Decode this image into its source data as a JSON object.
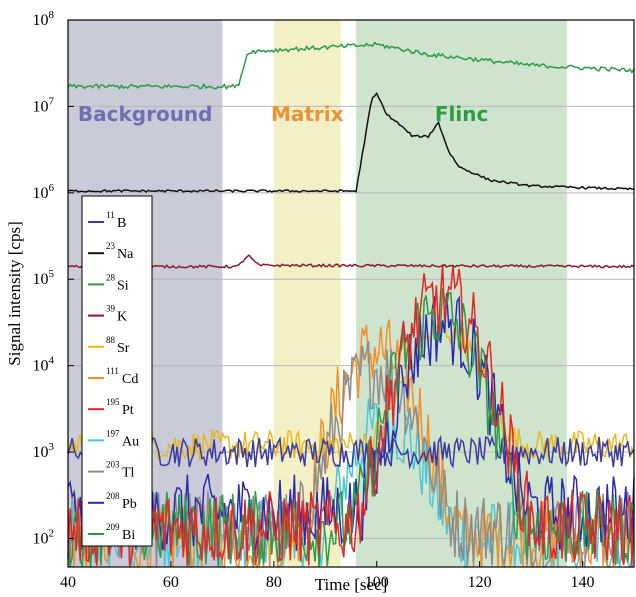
{
  "chart_data": {
    "type": "line",
    "title": "",
    "xlabel": "Time [sec]",
    "ylabel": "Signal intensity [cps]",
    "xlim": [
      40,
      150
    ],
    "ylim_log10": [
      1.67,
      8
    ],
    "y_scale": "log",
    "x_ticks": [
      "40",
      "60",
      "80",
      "100",
      "120",
      "140"
    ],
    "y_ticks": [
      {
        "base": "10",
        "exp": "2",
        "log10": 2
      },
      {
        "base": "10",
        "exp": "3",
        "log10": 3
      },
      {
        "base": "10",
        "exp": "4",
        "log10": 4
      },
      {
        "base": "10",
        "exp": "5",
        "log10": 5
      },
      {
        "base": "10",
        "exp": "6",
        "log10": 6
      },
      {
        "base": "10",
        "exp": "7",
        "log10": 7
      },
      {
        "base": "10",
        "exp": "8",
        "log10": 8
      }
    ],
    "grid": "horizontal",
    "legend_position": "left",
    "regions": [
      {
        "label": "Background",
        "x0": 40,
        "x1": 70,
        "fill": "#c9cbd9",
        "text_color": "#7070b0"
      },
      {
        "label": "Matrix",
        "x0": 80,
        "x1": 93,
        "fill": "#f2f0c4",
        "text_color": "#e8923a"
      },
      {
        "label": "Flinc",
        "x0": 96,
        "x1": 137,
        "fill": "#cfe4cc",
        "text_color": "#2f9a48"
      }
    ],
    "series": [
      {
        "mass": "11",
        "element": "B",
        "color": "#3a3aa0",
        "level": 1000,
        "peak_time": 0,
        "peak": 0
      },
      {
        "mass": "23",
        "element": "Na",
        "color": "#111111",
        "level": 1100000,
        "peak_time": 0,
        "peak": 0
      },
      {
        "mass": "28",
        "element": "Si",
        "color": "#2e9a48",
        "level": 18000000,
        "peak_time": 0,
        "peak": 0
      },
      {
        "mass": "39",
        "element": "K",
        "color": "#8a1c2c",
        "level": 140000,
        "peak_time": 0,
        "peak": 0
      },
      {
        "mass": "88",
        "element": "Sr",
        "color": "#e8b820",
        "level": 1200,
        "peak_time": 113,
        "peak": 25000
      },
      {
        "mass": "111",
        "element": "Cd",
        "color": "#f0902a",
        "level": 100,
        "peak_time": 100,
        "peak": 15000
      },
      {
        "mass": "195",
        "element": "Pt",
        "color": "#e02828",
        "level": 130,
        "peak_time": 113,
        "peak": 60000
      },
      {
        "mass": "197",
        "element": "Au",
        "color": "#4ac8d8",
        "level": 100,
        "peak_time": 102,
        "peak": 2000
      },
      {
        "mass": "203",
        "element": "Tl",
        "color": "#8c8c8c",
        "level": 130,
        "peak_time": 100,
        "peak": 9000
      },
      {
        "mass": "208",
        "element": "Pb",
        "color": "#2a2ab0",
        "level": 200,
        "peak_time": 113,
        "peak": 30000
      },
      {
        "mass": "209",
        "element": "Bi",
        "color": "#2c9a48",
        "level": 130,
        "peak_time": 112,
        "peak": 40000
      }
    ],
    "si_profile": [
      [
        40,
        17000000.0
      ],
      [
        60,
        17000000.0
      ],
      [
        73,
        17000000.0
      ],
      [
        75,
        43000000.0
      ],
      [
        100,
        52000000.0
      ],
      [
        110,
        40000000.0
      ],
      [
        130,
        30000000.0
      ],
      [
        150,
        26000000.0
      ]
    ],
    "na_profile": [
      [
        40,
        1050000.0
      ],
      [
        96,
        1050000.0
      ],
      [
        99,
        12000000.0
      ],
      [
        100,
        14000000.0
      ],
      [
        102,
        8000000.0
      ],
      [
        104,
        6500000.0
      ],
      [
        107,
        4500000.0
      ],
      [
        110,
        4500000.0
      ],
      [
        112,
        6500000.0
      ],
      [
        114,
        3000000.0
      ],
      [
        116,
        2000000.0
      ],
      [
        122,
        1400000.0
      ],
      [
        130,
        1200000.0
      ],
      [
        150,
        1100000.0
      ]
    ],
    "k_profile": [
      [
        40,
        140000.0
      ],
      [
        73,
        140000.0
      ],
      [
        75,
        190000.0
      ],
      [
        77,
        145000.0
      ],
      [
        150,
        140000.0
      ]
    ]
  }
}
